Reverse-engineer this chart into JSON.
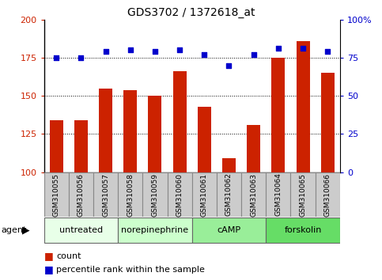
{
  "title": "GDS3702 / 1372618_at",
  "samples": [
    "GSM310055",
    "GSM310056",
    "GSM310057",
    "GSM310058",
    "GSM310059",
    "GSM310060",
    "GSM310061",
    "GSM310062",
    "GSM310063",
    "GSM310064",
    "GSM310065",
    "GSM310066"
  ],
  "counts": [
    134,
    134,
    155,
    154,
    150,
    166,
    143,
    109,
    131,
    175,
    186,
    165
  ],
  "percentiles": [
    75,
    75,
    79,
    80,
    79,
    80,
    77,
    70,
    77,
    81,
    81,
    79
  ],
  "bar_color": "#cc2200",
  "dot_color": "#0000cc",
  "ylim_left": [
    100,
    200
  ],
  "ylim_right": [
    0,
    100
  ],
  "yticks_left": [
    100,
    125,
    150,
    175,
    200
  ],
  "yticks_right": [
    0,
    25,
    50,
    75,
    100
  ],
  "yticklabels_right": [
    "0",
    "25",
    "50",
    "75",
    "100%"
  ],
  "groups": [
    {
      "label": "untreated",
      "start": 0,
      "end": 3,
      "color": "#e8ffe8"
    },
    {
      "label": "norepinephrine",
      "start": 3,
      "end": 6,
      "color": "#ccffcc"
    },
    {
      "label": "cAMP",
      "start": 6,
      "end": 9,
      "color": "#99ee99"
    },
    {
      "label": "forskolin",
      "start": 9,
      "end": 12,
      "color": "#66dd66"
    }
  ],
  "legend_count_label": "count",
  "legend_pct_label": "percentile rank within the sample",
  "agent_label": "agent",
  "tick_label_bg": "#cccccc",
  "tick_label_border": "#888888"
}
